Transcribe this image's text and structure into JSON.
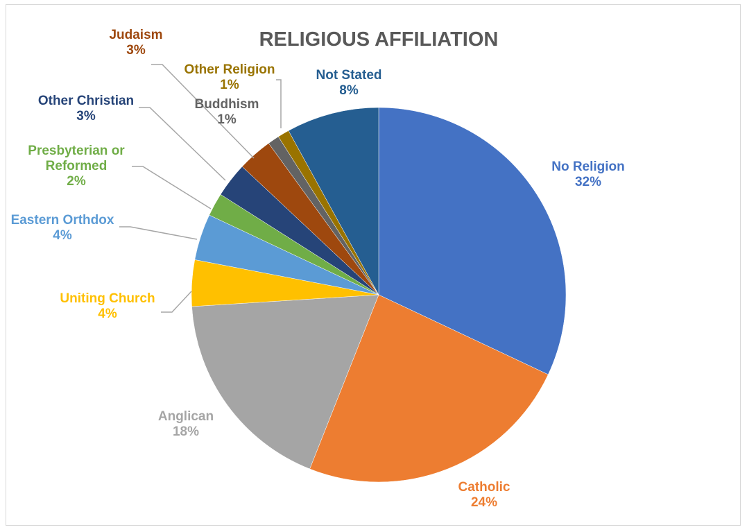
{
  "chart_data": {
    "type": "pie",
    "title": "RELIGIOUS AFFILIATION",
    "slices": [
      {
        "name": "No Religion",
        "value": 32,
        "pct_label": "32%",
        "color": "#4472C4"
      },
      {
        "name": "Catholic",
        "value": 24,
        "pct_label": "24%",
        "color": "#ED7D31"
      },
      {
        "name": "Anglican",
        "value": 18,
        "pct_label": "18%",
        "color": "#A5A5A5"
      },
      {
        "name": "Uniting Church",
        "value": 4,
        "pct_label": "4%",
        "color": "#FFC000"
      },
      {
        "name": "Eastern Orthdox",
        "value": 4,
        "pct_label": "4%",
        "color": "#5B9BD5"
      },
      {
        "name": "Presbyterian or Reformed",
        "value": 2,
        "pct_label": "2%",
        "color": "#70AD47"
      },
      {
        "name": "Other Christian",
        "value": 3,
        "pct_label": "3%",
        "color": "#264478"
      },
      {
        "name": "Judaism",
        "value": 3,
        "pct_label": "3%",
        "color": "#9E480E"
      },
      {
        "name": "Buddhism",
        "value": 1,
        "pct_label": "1%",
        "color": "#636363"
      },
      {
        "name": "Other Religion",
        "value": 1,
        "pct_label": "1%",
        "color": "#997300"
      },
      {
        "name": "Not Stated",
        "value": 8,
        "pct_label": "8%",
        "color": "#255E91"
      }
    ],
    "start_angle": "12 o'clock",
    "direction": "clockwise",
    "legend": "none (data labels)"
  }
}
